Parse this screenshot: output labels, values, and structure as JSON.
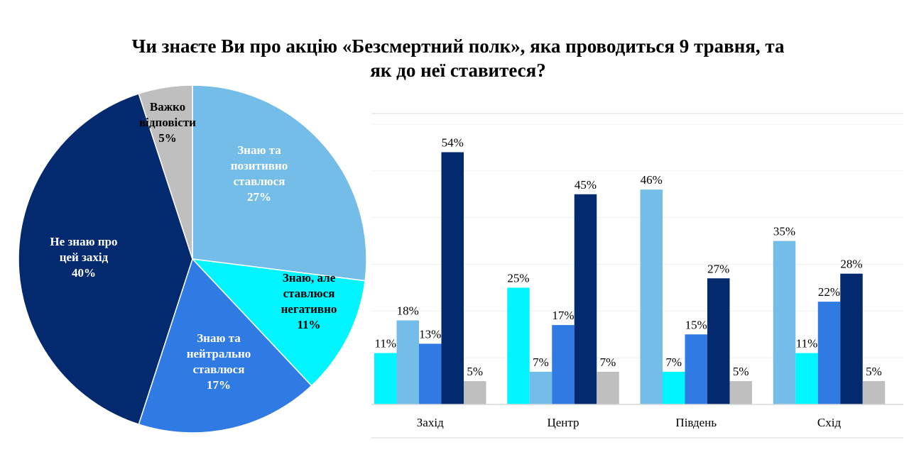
{
  "title_lines": [
    "Чи знаєте Ви про акцію «Безсмертний полк», яка проводиться 9 травня, та",
    "як до неї ставитеся?"
  ],
  "chart_data": [
    {
      "type": "pie",
      "slices": [
        {
          "label": [
            "Знаю та",
            "позитивно",
            "ставлюся"
          ],
          "value": 27,
          "value_label": "27%",
          "color": "#74BDE8"
        },
        {
          "label": [
            "Знаю, але",
            "ставлюся",
            "негативно"
          ],
          "value": 11,
          "value_label": "11%",
          "color": "#00F5FF"
        },
        {
          "label": [
            "Знаю та",
            "нейтрально",
            "ставлюся"
          ],
          "value": 17,
          "value_label": "17%",
          "color": "#2F7AE3"
        },
        {
          "label": [
            "Не знаю про",
            "цей захід"
          ],
          "value": 40,
          "value_label": "40%",
          "color": "#03296E"
        },
        {
          "label": [
            "Важко",
            "відповісти"
          ],
          "value": 5,
          "value_label": "5%",
          "color": "#BFBFBF"
        }
      ]
    },
    {
      "type": "bar",
      "categories": [
        "Захід",
        "Центр",
        "Південь",
        "Схід"
      ],
      "ylim": [
        0,
        60
      ],
      "grid": true,
      "groups": [
        {
          "category": "Захід",
          "bars": [
            {
              "value": 11,
              "label": "11%",
              "color": "#00F5FF"
            },
            {
              "value": 18,
              "label": "18%",
              "color": "#74BDE8"
            },
            {
              "value": 13,
              "label": "13%",
              "color": "#2F7AE3"
            },
            {
              "value": 54,
              "label": "54%",
              "color": "#03296E"
            },
            {
              "value": 5,
              "label": "5%",
              "color": "#BFBFBF"
            }
          ]
        },
        {
          "category": "Центр",
          "bars": [
            {
              "value": 25,
              "label": "25%",
              "color": "#00F5FF"
            },
            {
              "value": 7,
              "label": "7%",
              "color": "#74BDE8"
            },
            {
              "value": 17,
              "label": "17%",
              "color": "#2F7AE3"
            },
            {
              "value": 45,
              "label": "45%",
              "color": "#03296E"
            },
            {
              "value": 7,
              "label": "7%",
              "color": "#BFBFBF"
            }
          ]
        },
        {
          "category": "Південь",
          "bars": [
            {
              "value": 46,
              "label": "46%",
              "color": "#74BDE8"
            },
            {
              "value": 7,
              "label": "7%",
              "color": "#00F5FF"
            },
            {
              "value": 15,
              "label": "15%",
              "color": "#2F7AE3"
            },
            {
              "value": 27,
              "label": "27%",
              "color": "#03296E"
            },
            {
              "value": 5,
              "label": "5%",
              "color": "#BFBFBF"
            }
          ]
        },
        {
          "category": "Схід",
          "bars": [
            {
              "value": 35,
              "label": "35%",
              "color": "#74BDE8"
            },
            {
              "value": 11,
              "label": "11%",
              "color": "#00F5FF"
            },
            {
              "value": 22,
              "label": "22%",
              "color": "#2F7AE3"
            },
            {
              "value": 28,
              "label": "28%",
              "color": "#03296E"
            },
            {
              "value": 5,
              "label": "5%",
              "color": "#BFBFBF"
            }
          ]
        }
      ]
    }
  ]
}
